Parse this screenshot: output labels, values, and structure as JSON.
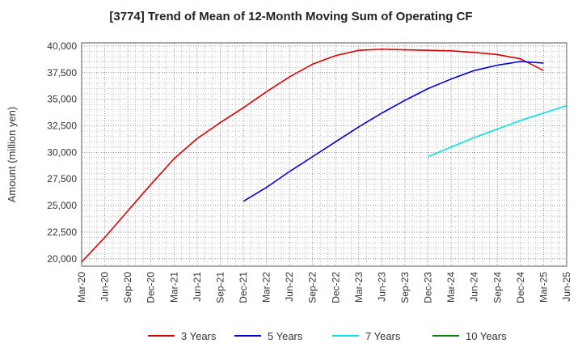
{
  "chart_data": {
    "type": "line",
    "title": "[3774]  Trend of Mean of 12-Month Moving Sum of Operating CF",
    "xlabel": "",
    "ylabel": "Amount (million yen)",
    "x_ticks": [
      "Mar-20",
      "Jun-20",
      "Sep-20",
      "Dec-20",
      "Mar-21",
      "Jun-21",
      "Sep-21",
      "Dec-21",
      "Mar-22",
      "Jun-22",
      "Sep-22",
      "Dec-22",
      "Mar-23",
      "Jun-23",
      "Sep-23",
      "Dec-23",
      "Mar-24",
      "Jun-24",
      "Sep-24",
      "Dec-24",
      "Mar-25",
      "Jun-25"
    ],
    "y_ticks": [
      "20,000",
      "22,500",
      "25,000",
      "27,500",
      "30,000",
      "32,500",
      "35,000",
      "37,500",
      "40,000"
    ],
    "ylim": [
      19300,
      40300
    ],
    "grid": true,
    "legend_position": "bottom",
    "series": [
      {
        "name": "3 Years",
        "color": "#dd0000",
        "points": [
          [
            "Mar-20",
            19700
          ],
          [
            "Jun-20",
            22000
          ],
          [
            "Sep-20",
            24500
          ],
          [
            "Dec-20",
            27000
          ],
          [
            "Mar-21",
            29400
          ],
          [
            "Jun-21",
            31300
          ],
          [
            "Sep-21",
            32800
          ],
          [
            "Dec-21",
            34200
          ],
          [
            "Mar-22",
            35700
          ],
          [
            "Jun-22",
            37100
          ],
          [
            "Sep-22",
            38300
          ],
          [
            "Dec-22",
            39100
          ],
          [
            "Mar-23",
            39600
          ],
          [
            "Jun-23",
            39700
          ],
          [
            "Sep-23",
            39650
          ],
          [
            "Dec-23",
            39600
          ],
          [
            "Mar-24",
            39550
          ],
          [
            "Jun-24",
            39400
          ],
          [
            "Sep-24",
            39200
          ],
          [
            "Dec-24",
            38800
          ],
          [
            "Mar-25",
            37700
          ]
        ]
      },
      {
        "name": "5 Years",
        "color": "#0000dd",
        "points": [
          [
            "Dec-21",
            25400
          ],
          [
            "Mar-22",
            26700
          ],
          [
            "Jun-22",
            28200
          ],
          [
            "Sep-22",
            29600
          ],
          [
            "Dec-22",
            31000
          ],
          [
            "Mar-23",
            32400
          ],
          [
            "Jun-23",
            33700
          ],
          [
            "Sep-23",
            34900
          ],
          [
            "Dec-23",
            36000
          ],
          [
            "Mar-24",
            36900
          ],
          [
            "Jun-24",
            37700
          ],
          [
            "Sep-24",
            38200
          ],
          [
            "Dec-24",
            38550
          ],
          [
            "Mar-25",
            38400
          ]
        ]
      },
      {
        "name": "7 Years",
        "color": "#00e5e5",
        "points": [
          [
            "Dec-23",
            29600
          ],
          [
            "Mar-24",
            30500
          ],
          [
            "Jun-24",
            31400
          ],
          [
            "Sep-24",
            32200
          ],
          [
            "Dec-24",
            33000
          ],
          [
            "Mar-25",
            33700
          ],
          [
            "Jun-25",
            34400
          ]
        ]
      },
      {
        "name": "10 Years",
        "color": "#008800",
        "points": []
      }
    ]
  }
}
